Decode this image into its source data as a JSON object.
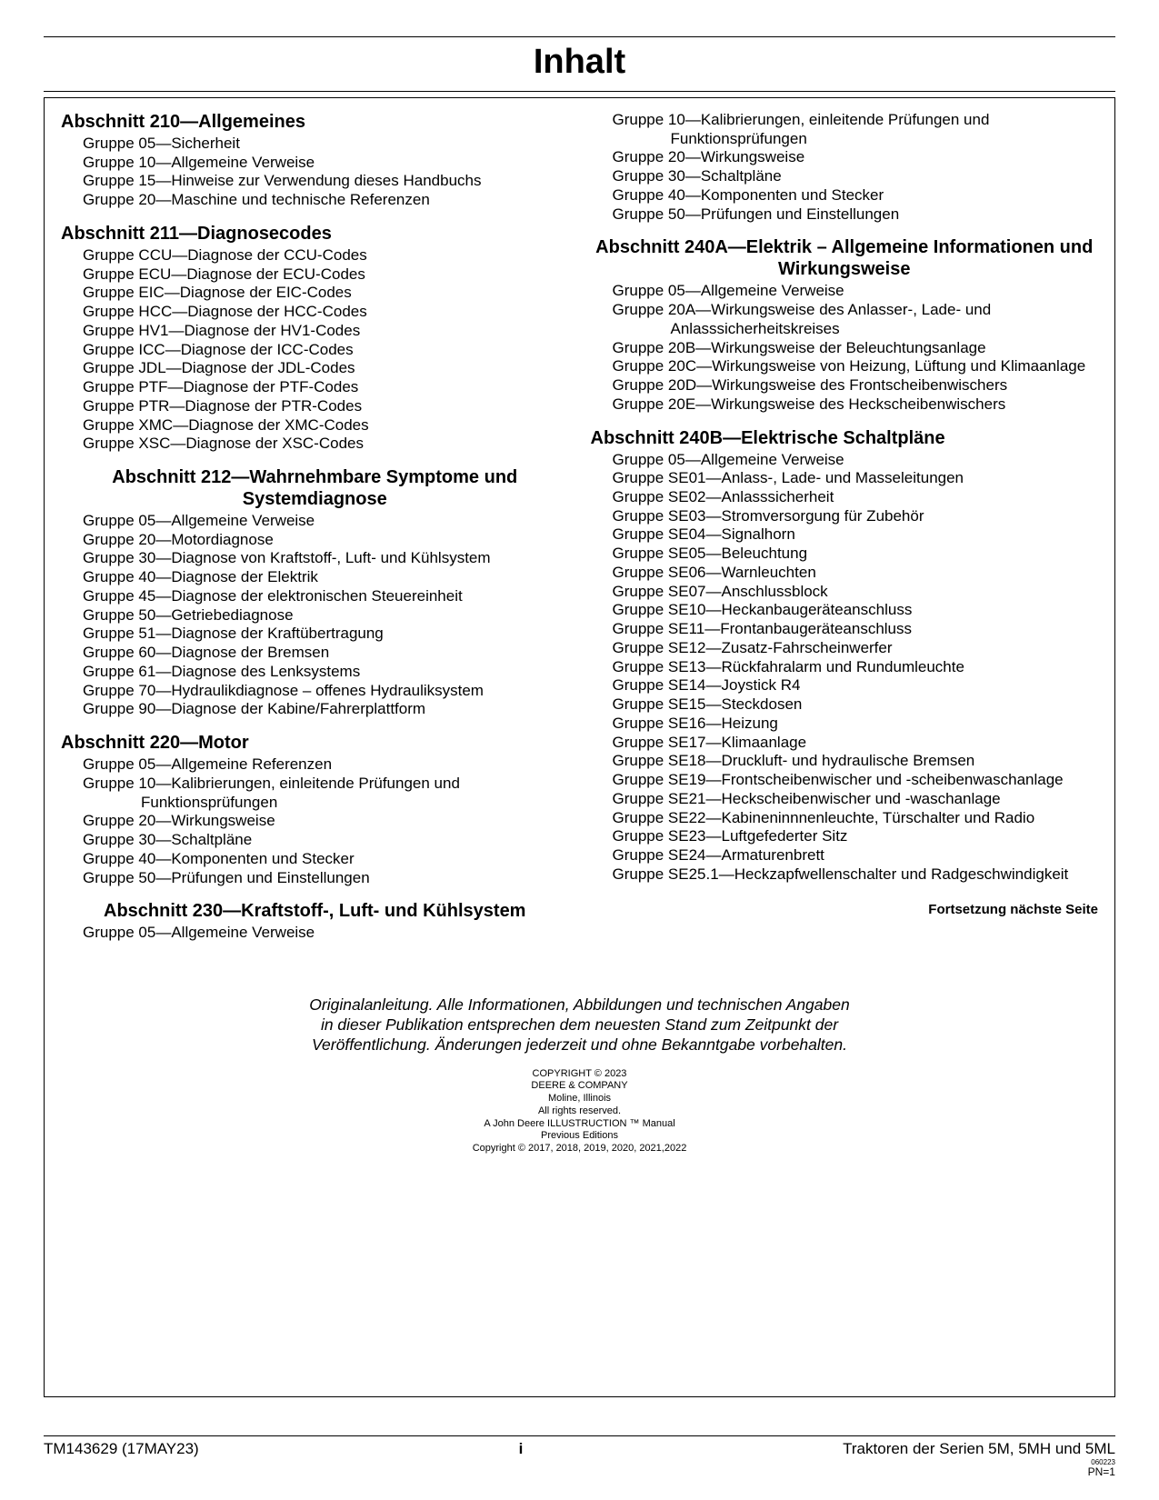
{
  "page_title": "Inhalt",
  "left_sections": [
    {
      "title": "Abschnitt 210—Allgemeines",
      "entries": [
        "Gruppe 05—Sicherheit",
        "Gruppe 10—Allgemeine Verweise",
        "Gruppe 15—Hinweise zur Verwendung dieses Handbuchs",
        "Gruppe 20—Maschine und technische Referenzen"
      ]
    },
    {
      "title": "Abschnitt 211—Diagnosecodes",
      "entries": [
        "Gruppe CCU—Diagnose der CCU-Codes",
        "Gruppe ECU—Diagnose der ECU-Codes",
        "Gruppe EIC—Diagnose der EIC-Codes",
        "Gruppe HCC—Diagnose der HCC-Codes",
        "Gruppe HV1—Diagnose der HV1-Codes",
        "Gruppe ICC—Diagnose der ICC-Codes",
        "Gruppe JDL—Diagnose der JDL-Codes",
        "Gruppe PTF—Diagnose der PTF-Codes",
        "Gruppe PTR—Diagnose der PTR-Codes",
        "Gruppe XMC—Diagnose der XMC-Codes",
        "Gruppe XSC—Diagnose der XSC-Codes"
      ]
    },
    {
      "title": "Abschnitt 212—Wahrnehmbare Symptome und Systemdiagnose",
      "title_center": true,
      "entries": [
        "Gruppe 05—Allgemeine Verweise",
        "Gruppe 20—Motordiagnose",
        "Gruppe 30—Diagnose von Kraftstoff-, Luft- und Kühlsystem",
        "Gruppe 40—Diagnose der Elektrik",
        "Gruppe 45—Diagnose der elektronischen Steuereinheit",
        "Gruppe 50—Getriebediagnose",
        "Gruppe 51—Diagnose der Kraftübertragung",
        "Gruppe 60—Diagnose der Bremsen",
        "Gruppe 61—Diagnose des Lenksystems",
        "Gruppe 70—Hydraulikdiagnose – offenes Hydrauliksystem",
        "Gruppe 90—Diagnose der Kabine/Fahrerplattform"
      ]
    },
    {
      "title": "Abschnitt 220—Motor",
      "entries": [
        "Gruppe 05—Allgemeine Referenzen",
        "Gruppe 10—Kalibrierungen, einleitende Prüfungen und Funktionsprüfungen",
        "Gruppe 20—Wirkungsweise",
        "Gruppe 30—Schaltpläne",
        "Gruppe 40—Komponenten und Stecker",
        "Gruppe 50—Prüfungen und Einstellungen"
      ]
    },
    {
      "title": "Abschnitt 230—Kraftstoff-, Luft- und Kühlsystem",
      "title_center": true,
      "entries": [
        "Gruppe 05—Allgemeine Verweise"
      ]
    }
  ],
  "right_pre_entries": [
    "Gruppe 10—Kalibrierungen, einleitende Prüfungen und Funktionsprüfungen",
    "Gruppe 20—Wirkungsweise",
    "Gruppe 30—Schaltpläne",
    "Gruppe 40—Komponenten und Stecker",
    "Gruppe 50—Prüfungen und Einstellungen"
  ],
  "right_sections": [
    {
      "title": "Abschnitt 240A—Elektrik – Allgemeine Informationen und Wirkungsweise",
      "title_center": true,
      "entries": [
        "Gruppe 05—Allgemeine Verweise",
        "Gruppe 20A—Wirkungsweise des Anlasser-, Lade- und Anlasssicherheitskreises",
        "Gruppe 20B—Wirkungsweise der Beleuchtungsanlage",
        "Gruppe 20C—Wirkungsweise von Heizung, Lüftung und Klimaanlage",
        "Gruppe 20D—Wirkungsweise des Frontscheibenwischers",
        "Gruppe 20E—Wirkungsweise des Heckscheibenwischers"
      ]
    },
    {
      "title": "Abschnitt 240B—Elektrische Schaltpläne",
      "entries": [
        "Gruppe 05—Allgemeine Verweise",
        "Gruppe SE01—Anlass-, Lade- und Masseleitungen",
        "Gruppe SE02—Anlasssicherheit",
        "Gruppe SE03—Stromversorgung für Zubehör",
        "Gruppe SE04—Signalhorn",
        "Gruppe SE05—Beleuchtung",
        "Gruppe SE06—Warnleuchten",
        "Gruppe SE07—Anschlussblock",
        "Gruppe SE10—Heckanbaugeräteanschluss",
        "Gruppe SE11—Frontanbaugeräteanschluss",
        "Gruppe SE12—Zusatz-Fahrscheinwerfer",
        "Gruppe SE13—Rückfahralarm und Rundumleuchte",
        "Gruppe SE14—Joystick R4",
        "Gruppe SE15—Steckdosen",
        "Gruppe SE16—Heizung",
        "Gruppe SE17—Klimaanlage",
        "Gruppe SE18—Druckluft- und hydraulische Bremsen",
        "Gruppe SE19—Frontscheibenwischer und -scheibenwaschanlage",
        "Gruppe SE21—Heckscheibenwischer und -waschanlage",
        "Gruppe SE22—Kabineninnnenleuchte, Türschalter und Radio",
        "Gruppe SE23—Luftgefederter Sitz",
        "Gruppe SE24—Armaturenbrett",
        "Gruppe SE25.1—Heckzapfwellenschalter und Radgeschwindigkeit"
      ]
    }
  ],
  "continuation": "Fortsetzung nächste Seite",
  "disclaimer": [
    "Originalanleitung. Alle Informationen, Abbildungen und technischen Angaben",
    "in dieser Publikation entsprechen dem neuesten Stand zum Zeitpunkt der",
    "Veröffentlichung. Änderungen jederzeit und ohne Bekanntgabe vorbehalten."
  ],
  "copyright": [
    "COPYRIGHT © 2023",
    "DEERE & COMPANY",
    "Moline, Illinois",
    "All rights reserved.",
    "A John Deere ILLUSTRUCTION ™ Manual",
    "Previous Editions",
    "Copyright © 2017, 2018, 2019, 2020, 2021,2022"
  ],
  "footer": {
    "left": "TM143629 (17MAY23)",
    "center": "i",
    "right": "Traktoren der Serien 5M, 5MH und 5ML",
    "tiny": "060223",
    "pn": "PN=1"
  }
}
